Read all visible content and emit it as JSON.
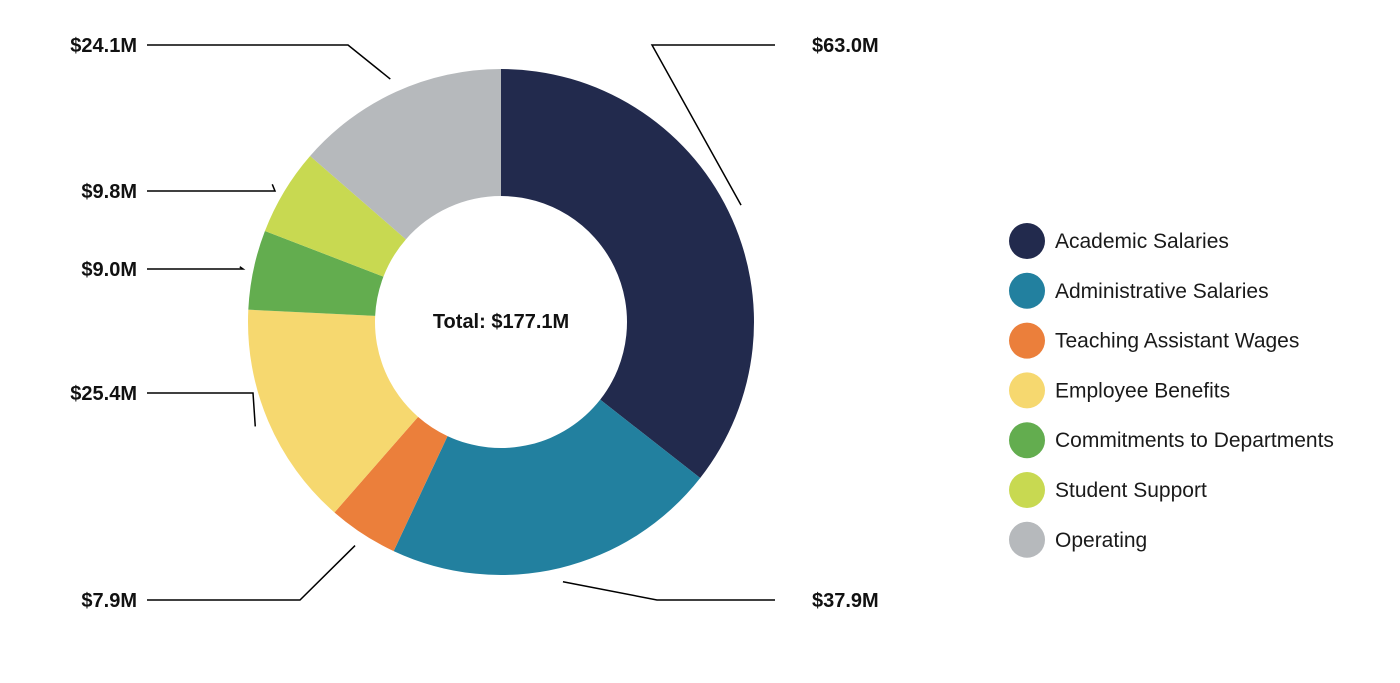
{
  "chart_data": {
    "type": "pie",
    "donut": true,
    "center_text": "Total: $177.1M",
    "total": 177.1,
    "unit": "$M",
    "legend_position": "right",
    "slices": [
      {
        "label": "Academic Salaries",
        "value": 63.0,
        "display": "$63.0M",
        "color": "#222a4d"
      },
      {
        "label": "Administrative Salaries",
        "value": 37.9,
        "display": "$37.9M",
        "color": "#22809f"
      },
      {
        "label": "Teaching Assistant Wages",
        "value": 7.9,
        "display": "$7.9M",
        "color": "#eb7f3b"
      },
      {
        "label": "Employee Benefits",
        "value": 25.4,
        "display": "$25.4M",
        "color": "#f6d86f"
      },
      {
        "label": "Commitments to Departments",
        "value": 9.0,
        "display": "$9.0M",
        "color": "#63ad4f"
      },
      {
        "label": "Student Support",
        "value": 9.8,
        "display": "$9.8M",
        "color": "#c8d951"
      },
      {
        "label": "Operating",
        "value": 24.1,
        "display": "$24.1M",
        "color": "#b6b9bc"
      }
    ]
  }
}
